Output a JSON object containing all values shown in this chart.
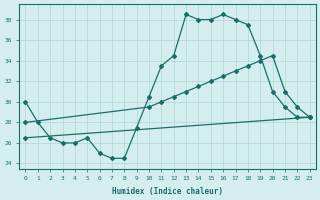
{
  "xlabel": "Humidex (Indice chaleur)",
  "background_color": "#d4eef0",
  "grid_color": "#b8d8dc",
  "line_color": "#1a6e6a",
  "xlim": [
    -0.5,
    23.5
  ],
  "ylim": [
    23.5,
    39.5
  ],
  "yticks": [
    24,
    26,
    28,
    30,
    32,
    34,
    36,
    38
  ],
  "xticks": [
    0,
    1,
    2,
    3,
    4,
    5,
    6,
    7,
    8,
    9,
    10,
    11,
    12,
    13,
    14,
    15,
    16,
    17,
    18,
    19,
    20,
    21,
    22,
    23
  ],
  "line1_x": [
    0,
    1,
    2,
    3,
    4,
    5,
    6,
    7,
    8,
    9,
    10,
    11,
    12,
    13,
    14,
    15,
    16,
    17,
    18,
    19,
    20,
    21,
    22,
    23
  ],
  "line1_y": [
    30,
    28,
    26.5,
    26,
    26,
    26.5,
    25,
    24.5,
    24.5,
    27.5,
    30.5,
    33.5,
    34.5,
    38.5,
    38,
    38,
    38.5,
    38,
    37.5,
    34.5,
    31,
    29.5,
    28.5,
    28.5
  ],
  "line2_x": [
    0,
    10,
    11,
    12,
    13,
    14,
    15,
    16,
    17,
    18,
    19,
    20,
    21,
    22,
    23
  ],
  "line2_y": [
    28,
    29.5,
    30.0,
    30.5,
    31.0,
    31.5,
    32.0,
    32.5,
    33.0,
    33.5,
    34.0,
    34.5,
    31.0,
    29.5,
    28.5
  ],
  "line3_x": [
    0,
    23
  ],
  "line3_y": [
    26.5,
    28.5
  ]
}
